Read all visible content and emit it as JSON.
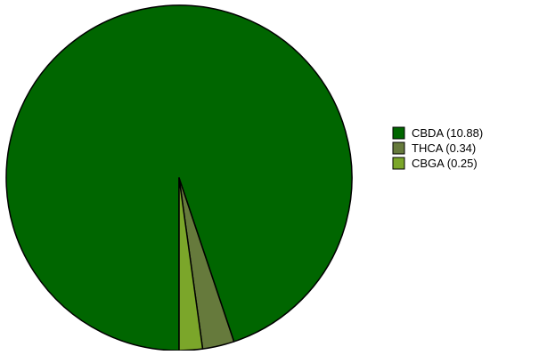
{
  "chart_data": {
    "type": "pie",
    "title": "",
    "legend_position": "right",
    "slices": [
      {
        "label": "CBDA (10.88)",
        "name": "CBDA",
        "value": 10.88,
        "color": "#006600"
      },
      {
        "label": "THCA (0.34)",
        "name": "THCA",
        "value": 0.34,
        "color": "#667a3c"
      },
      {
        "label": "CBGA (0.25)",
        "name": "CBGA",
        "value": 0.25,
        "color": "#7ba62a"
      }
    ],
    "stroke_color": "#000000"
  }
}
